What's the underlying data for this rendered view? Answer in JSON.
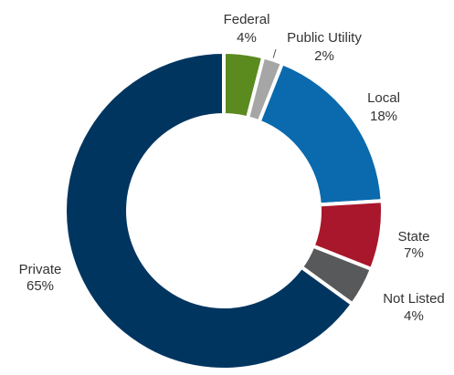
{
  "chart_data": {
    "type": "donut",
    "categories": [
      "Federal",
      "Public Utility",
      "Local",
      "State",
      "Not Listed",
      "Private"
    ],
    "values": [
      4,
      2,
      18,
      7,
      4,
      65
    ],
    "value_labels": [
      "4%",
      "2%",
      "18%",
      "7%",
      "4%",
      "65%"
    ],
    "colors": [
      "#5b8a1f",
      "#a6a6a6",
      "#0a6aad",
      "#a8172b",
      "#58595b",
      "#003560"
    ]
  }
}
